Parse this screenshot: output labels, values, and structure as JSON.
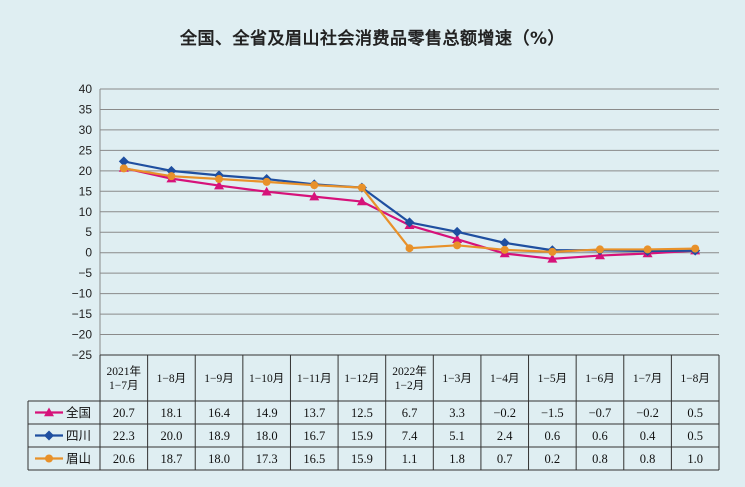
{
  "chart_data": {
    "type": "line",
    "title": "全国、全省及眉山社会消费品零售总额增速（%）",
    "categories": [
      [
        "2021年",
        "1−7月"
      ],
      [
        "1−8月"
      ],
      [
        "1−9月"
      ],
      [
        "1−10月"
      ],
      [
        "1−11月"
      ],
      [
        "1−12月"
      ],
      [
        "2022年",
        "1−2月"
      ],
      [
        "1−3月"
      ],
      [
        "1−4月"
      ],
      [
        "1−5月"
      ],
      [
        "1−6月"
      ],
      [
        "1−7月"
      ],
      [
        "1−8月"
      ]
    ],
    "ylim": [
      -25,
      40
    ],
    "yticks": [
      40,
      35,
      30,
      25,
      20,
      15,
      10,
      5,
      0,
      -5,
      -10,
      -15,
      -20,
      -25
    ],
    "ytick_labels": [
      "40",
      "35",
      "30",
      "25",
      "20",
      "15",
      "10",
      "5",
      "0",
      "−5",
      "−10",
      "−15",
      "−20",
      "−25"
    ],
    "grid": true,
    "legend": "table-rows",
    "series": [
      {
        "name": "全国",
        "color": "#d6127a",
        "marker": "triangle",
        "values": [
          20.7,
          18.1,
          16.4,
          14.9,
          13.7,
          12.5,
          6.7,
          3.3,
          -0.2,
          -1.5,
          -0.7,
          -0.2,
          0.5
        ],
        "labels": [
          "20.7",
          "18.1",
          "16.4",
          "14.9",
          "13.7",
          "12.5",
          "6.7",
          "3.3",
          "−0.2",
          "−1.5",
          "−0.7",
          "−0.2",
          "0.5"
        ]
      },
      {
        "name": "四川",
        "color": "#1f4fa0",
        "marker": "diamond",
        "values": [
          22.3,
          20.0,
          18.9,
          18.0,
          16.7,
          15.9,
          7.4,
          5.1,
          2.4,
          0.6,
          0.6,
          0.4,
          0.5
        ],
        "labels": [
          "22.3",
          "20.0",
          "18.9",
          "18.0",
          "16.7",
          "15.9",
          "7.4",
          "5.1",
          "2.4",
          "0.6",
          "0.6",
          "0.4",
          "0.5"
        ]
      },
      {
        "name": "眉山",
        "color": "#e8912a",
        "marker": "circle",
        "values": [
          20.6,
          18.7,
          18.0,
          17.3,
          16.5,
          15.9,
          1.1,
          1.8,
          0.7,
          0.2,
          0.8,
          0.8,
          1.0
        ],
        "labels": [
          "20.6",
          "18.7",
          "18.0",
          "17.3",
          "16.5",
          "15.9",
          "1.1",
          "1.8",
          "0.7",
          "0.2",
          "0.8",
          "0.8",
          "1.0"
        ]
      }
    ]
  }
}
